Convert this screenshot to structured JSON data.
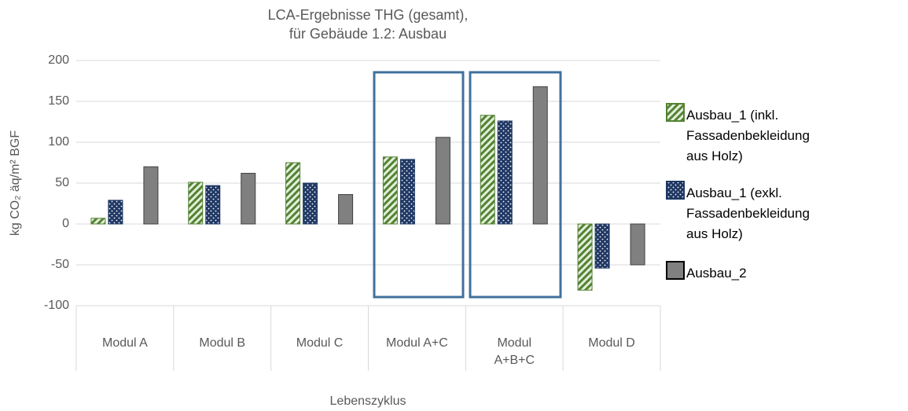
{
  "chart_data": {
    "type": "bar",
    "title": [
      "LCA-Ergebnisse THG (gesamt),",
      "für Gebäude 1.2: Ausbau"
    ],
    "y_label": "kg CO₂ äq/m² BGF",
    "x_label": "Lebenszyklus",
    "categories": [
      "Modul A",
      "Modul B",
      "Modul C",
      "Modul A+C",
      "Modul A+B+C",
      "Modul D"
    ],
    "series": [
      {
        "name": "Ausbau_1 (inkl. Fassadenbekleidung aus Holz)",
        "color": "#548235",
        "pattern": "stripes",
        "values": [
          7,
          51,
          75,
          82,
          133,
          -81
        ]
      },
      {
        "name": "Ausbau_1 (exkl. Fassadenbekleidung aus Holz)",
        "color": "#203864",
        "pattern": "dots",
        "values": [
          29,
          47,
          50,
          79,
          126,
          -54
        ]
      },
      {
        "name": "Ausbau_2",
        "color": "#808080",
        "pattern": "solid",
        "values": [
          70,
          62,
          36,
          106,
          168,
          -50
        ]
      }
    ],
    "ylim": [
      -100,
      200
    ],
    "yticks": [
      -100,
      -50,
      0,
      50,
      100,
      150,
      200
    ],
    "grid": true,
    "legend": "right"
  }
}
